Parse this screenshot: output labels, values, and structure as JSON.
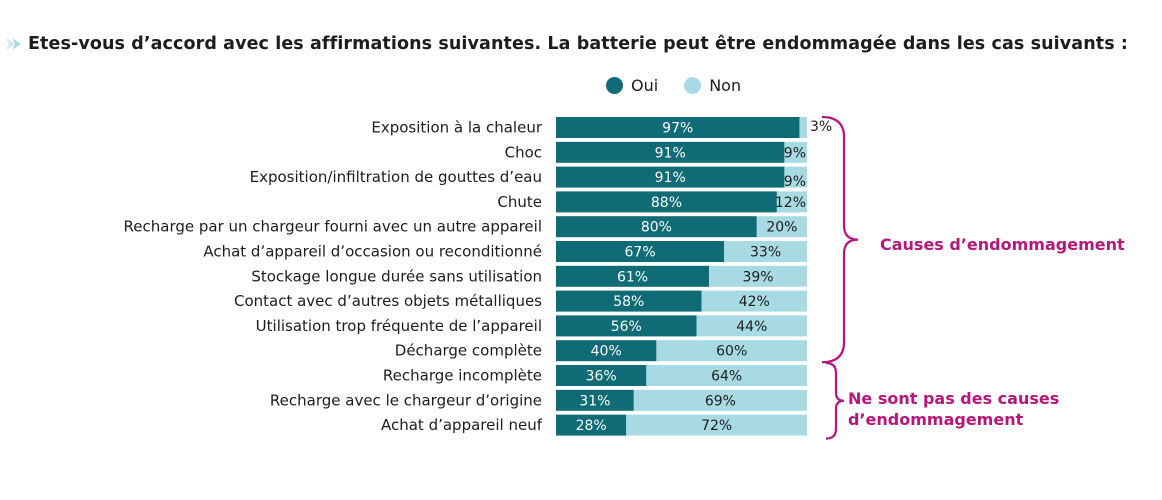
{
  "title": "Etes-vous d’accord avec les affirmations suivantes. La batterie peut être endommagée dans les cas suivants :",
  "colors": {
    "oui": "#0f6b75",
    "non": "#a8dae4",
    "bracket": "#b5177a",
    "title_arrow": "#a8dae4"
  },
  "legend": [
    {
      "label": "Oui",
      "color": "#0f6b75"
    },
    {
      "label": "Non",
      "color": "#a8dae4"
    }
  ],
  "groups": [
    {
      "label_lines": [
        "Causes d’endommagement"
      ],
      "first_row": 0,
      "last_row": 9
    },
    {
      "label_lines": [
        "Ne sont pas des causes",
        "d’endommagement"
      ],
      "first_row": 10,
      "last_row": 12
    }
  ],
  "chart_data": {
    "type": "bar",
    "orientation": "horizontal",
    "stacked": true,
    "categories": [
      "Exposition à la chaleur",
      "Choc",
      "Exposition/infiltration de gouttes d’eau",
      "Chute",
      "Recharge par un chargeur fourni avec un autre appareil",
      "Achat d’appareil d’occasion ou reconditionné",
      "Stockage longue durée sans utilisation",
      "Contact avec d’autres objets métalliques",
      "Utilisation trop fréquente de l’appareil",
      "Décharge complète",
      "Recharge incomplète",
      "Recharge avec le chargeur d’origine",
      "Achat d’appareil neuf"
    ],
    "series": [
      {
        "name": "Oui",
        "values": [
          97,
          91,
          91,
          88,
          80,
          67,
          61,
          58,
          56,
          40,
          36,
          31,
          28
        ],
        "labels": [
          "97%",
          "91%",
          "91%",
          "88%",
          "80%",
          "67%",
          "61%",
          "58%",
          "56%",
          "40%",
          "36%",
          "31%",
          "28%"
        ]
      },
      {
        "name": "Non",
        "values": [
          3,
          9,
          9,
          12,
          20,
          33,
          39,
          42,
          44,
          60,
          64,
          69,
          72
        ],
        "labels": [
          "3%",
          "9%",
          "9%",
          "12%",
          "20%",
          "33%",
          "39%",
          "42%",
          "44%",
          "60%",
          "64%",
          "69%",
          "72%"
        ]
      }
    ],
    "xlim": [
      0,
      100
    ],
    "unit": "%",
    "grid": false,
    "legend_position": "top-center"
  }
}
